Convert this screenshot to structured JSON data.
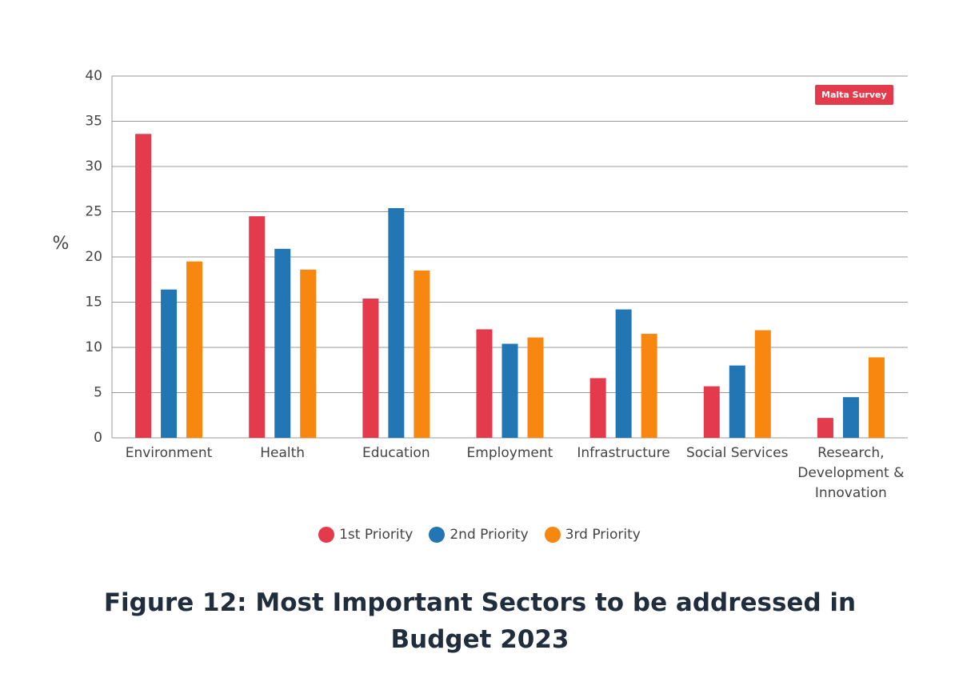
{
  "chart_data": {
    "type": "bar",
    "title": "Figure 12: Most Important Sectors to be addressed in Budget 2023",
    "y_label": "%",
    "annotation": "Malta Survey",
    "categories": [
      "Environment",
      "Health",
      "Education",
      "Employment",
      "Infrastructure",
      "Social Services",
      "Research, Development & Innovation"
    ],
    "series": [
      {
        "name": "1st Priority",
        "color": "#e43b4c",
        "values": [
          33.6,
          24.5,
          15.4,
          12.0,
          6.6,
          5.7,
          2.2
        ]
      },
      {
        "name": "2nd Priority",
        "color": "#2376b4",
        "values": [
          16.4,
          20.9,
          25.4,
          10.4,
          14.2,
          8.0,
          4.5
        ]
      },
      {
        "name": "3rd Priority",
        "color": "#f7870f",
        "values": [
          19.5,
          18.6,
          18.5,
          11.1,
          11.5,
          11.9,
          8.9
        ]
      }
    ],
    "ylim": [
      0,
      40
    ],
    "yticks": [
      0,
      5,
      10,
      15,
      20,
      25,
      30,
      35,
      40
    ],
    "grid": true
  }
}
